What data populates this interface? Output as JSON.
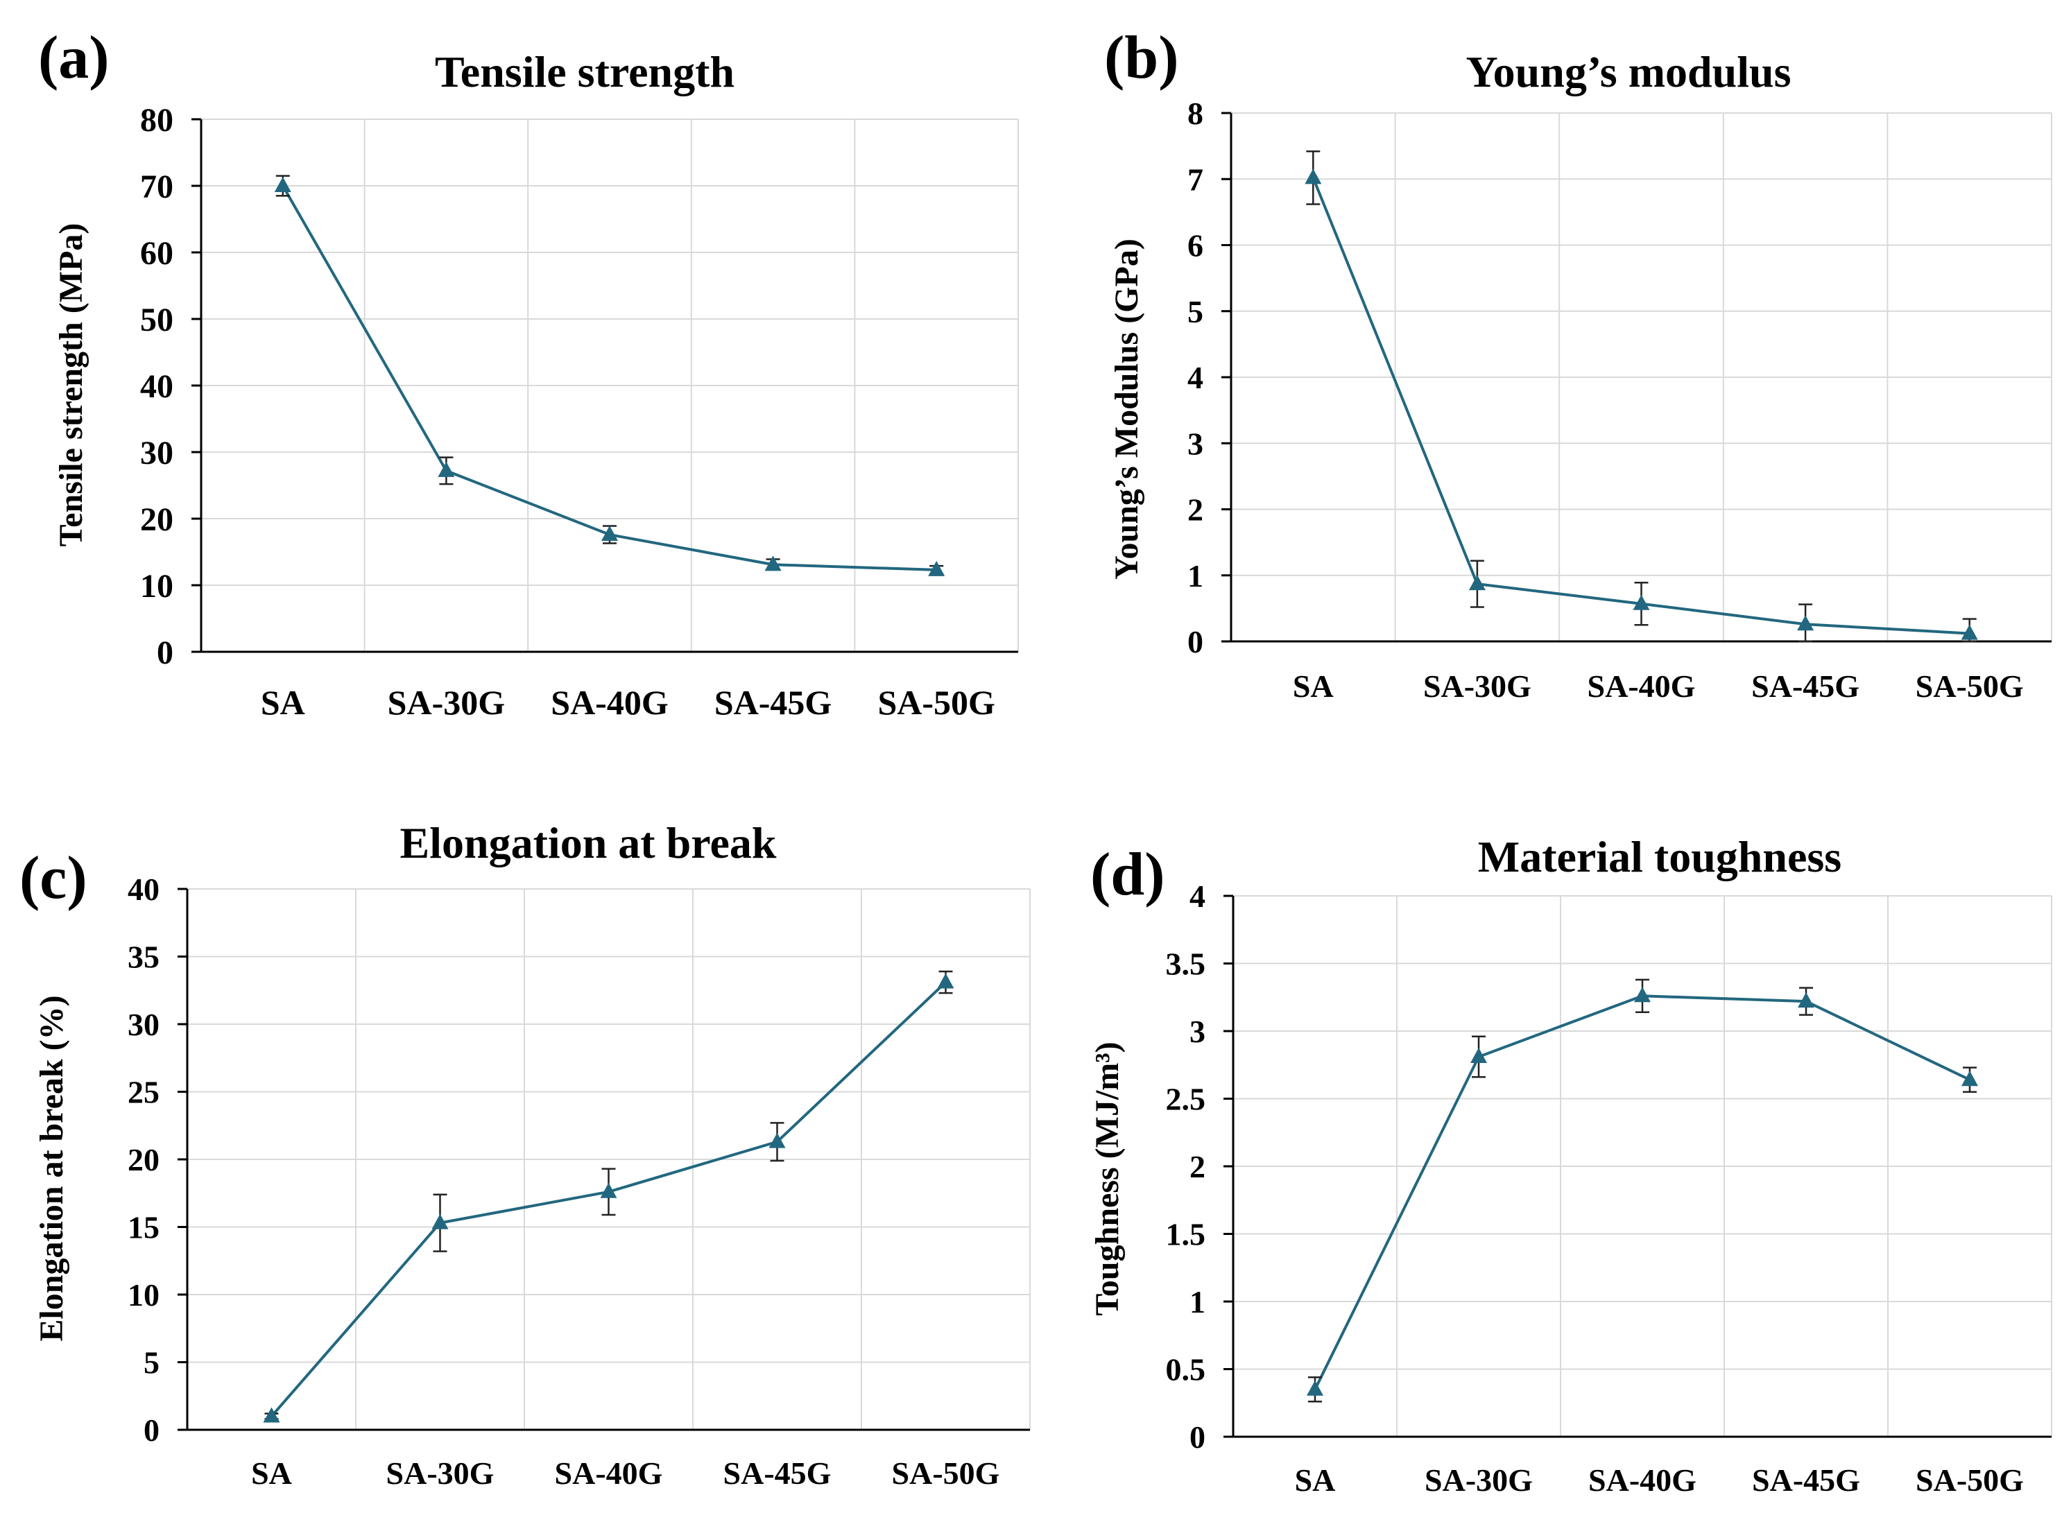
{
  "colors": {
    "series": "#22677f",
    "grid": "#d9d9d9",
    "axis": "#000000",
    "errorbar": "#222222"
  },
  "chart_data": [
    {
      "panel_label": "(a)",
      "type": "line",
      "title": "Tensile strength",
      "xlabel": "",
      "ylabel": "Tensile strength (MPa)",
      "categories": [
        "SA",
        "SA-30G",
        "SA-40G",
        "SA-45G",
        "SA-50G"
      ],
      "values": [
        70,
        27.2,
        17.6,
        13.1,
        12.3
      ],
      "errors": [
        1.5,
        2.0,
        1.3,
        0.8,
        0.6
      ],
      "ylim": [
        0,
        80
      ],
      "yticks": [
        0,
        10,
        20,
        30,
        40,
        50,
        60,
        70,
        80
      ],
      "ytick_labels": [
        "0",
        "10",
        "20",
        "30",
        "40",
        "50",
        "60",
        "70",
        "80"
      ],
      "grid": true,
      "marker": "triangle"
    },
    {
      "panel_label": "(b)",
      "type": "line",
      "title": "Young’s modulus",
      "xlabel": "",
      "ylabel": "Young’s Modulus (GPa)",
      "categories": [
        "SA",
        "SA-30G",
        "SA-40G",
        "SA-45G",
        "SA-50G"
      ],
      "values": [
        7.02,
        0.87,
        0.57,
        0.26,
        0.12
      ],
      "errors": [
        0.4,
        0.35,
        0.32,
        0.3,
        0.22
      ],
      "ylim": [
        0,
        8
      ],
      "yticks": [
        0,
        1,
        2,
        3,
        4,
        5,
        6,
        7,
        8
      ],
      "ytick_labels": [
        "0",
        "1",
        "2",
        "3",
        "4",
        "5",
        "6",
        "7",
        "8"
      ],
      "grid": true,
      "marker": "triangle"
    },
    {
      "panel_label": "(c)",
      "type": "line",
      "title": "Elongation at break",
      "xlabel": "",
      "ylabel": "Elongation at break (%)",
      "categories": [
        "SA",
        "SA-30G",
        "SA-40G",
        "SA-45G",
        "SA-50G"
      ],
      "values": [
        1.0,
        15.3,
        17.6,
        21.3,
        33.1
      ],
      "errors": [
        0.2,
        2.1,
        1.7,
        1.4,
        0.8
      ],
      "ylim": [
        0,
        40
      ],
      "yticks": [
        0,
        5,
        10,
        15,
        20,
        25,
        30,
        35,
        40
      ],
      "ytick_labels": [
        "0",
        "5",
        "10",
        "15",
        "20",
        "25",
        "30",
        "35",
        "40"
      ],
      "grid": true,
      "marker": "triangle"
    },
    {
      "panel_label": "(d)",
      "type": "line",
      "title": "Material toughness",
      "xlabel": "",
      "ylabel": "Toughness (MJ/m³)",
      "categories": [
        "SA",
        "SA-30G",
        "SA-40G",
        "SA-45G",
        "SA-50G"
      ],
      "values": [
        0.35,
        2.81,
        3.26,
        3.22,
        2.64
      ],
      "errors": [
        0.09,
        0.15,
        0.12,
        0.1,
        0.09
      ],
      "ylim": [
        0,
        4
      ],
      "yticks": [
        0,
        0.5,
        1,
        1.5,
        2,
        2.5,
        3,
        3.5,
        4
      ],
      "ytick_labels": [
        "0",
        "0.5",
        "1",
        "1.5",
        "2",
        "2.5",
        "3",
        "3.5",
        "4"
      ],
      "grid": true,
      "marker": "triangle"
    }
  ]
}
